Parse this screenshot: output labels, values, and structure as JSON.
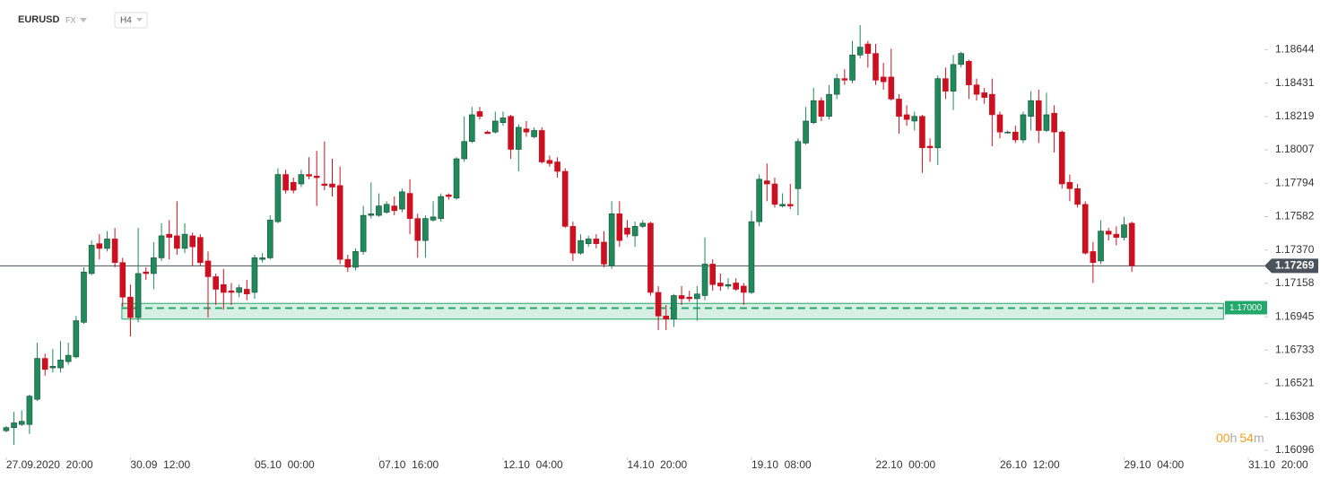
{
  "header": {
    "symbol": "EURUSD",
    "market": "FX",
    "timeframe": "H4"
  },
  "chart_data": {
    "type": "candlestick",
    "up_color": "#1f8a5c",
    "down_color": "#cc1020",
    "open": [
      1.1622,
      1.1624,
      1.1626,
      1.1626,
      1.1642,
      1.1668,
      1.1662,
      1.1662,
      1.1666,
      1.1669,
      1.1691,
      1.1722,
      1.1741,
      1.1738,
      1.1744,
      1.1729,
      1.1707,
      1.1694,
      1.1723,
      1.1722,
      1.1732,
      1.1747,
      1.1746,
      1.1738,
      1.1746,
      1.1745,
      1.173,
      1.172,
      1.1715,
      1.1711,
      1.171,
      1.1712,
      1.171,
      1.1731,
      1.1732,
      1.1755,
      1.1785,
      1.178,
      1.1779,
      1.1785,
      1.1784,
      1.1779,
      1.1779,
      1.1778,
      1.1731,
      1.1726,
      1.1736,
      1.1759,
      1.1759,
      1.1761,
      1.1765,
      1.1763,
      1.1773,
      1.1757,
      1.1743,
      1.1756,
      1.1757,
      1.1772,
      1.177,
      1.1795,
      1.1806,
      1.1825,
      1.1812,
      1.1812,
      1.1818,
      1.1822,
      1.1801,
      1.1814,
      1.1809,
      1.1813,
      1.1794,
      1.1793,
      1.1787,
      1.1752,
      1.1735,
      1.1741,
      1.1744,
      1.1742,
      1.1727,
      1.176,
      1.1751,
      1.1746,
      1.1752,
      1.1754,
      1.171,
      1.1695,
      1.1693,
      1.1708,
      1.1707,
      1.1706,
      1.1708,
      1.1728,
      1.1716,
      1.1714,
      1.1716,
      1.1714,
      1.171,
      1.1755,
      1.1781,
      1.1779,
      1.1765,
      1.1766,
      1.1776,
      1.1805,
      1.1818,
      1.1832,
      1.1822,
      1.1836,
      1.1846,
      1.1845,
      1.1861,
      1.1868,
      1.1862,
      1.1847,
      1.1847,
      1.1833,
      1.1823,
      1.1819,
      1.1822,
      1.1803,
      1.1802,
      1.1846,
      1.1838,
      1.1855,
      1.1857,
      1.1842,
      1.1837,
      1.1836,
      1.1823,
      1.1812,
      1.1812,
      1.1807,
      1.1822,
      1.1832,
      1.1813,
      1.1824,
      1.1812,
      1.178,
      1.1776,
      1.1766,
      1.1736,
      1.173,
      1.1749,
      1.1747,
      1.1745,
      1.1754
    ],
    "high": [
      1.1625,
      1.1634,
      1.1635,
      1.1645,
      1.1678,
      1.1671,
      1.1674,
      1.1679,
      1.1678,
      1.1695,
      1.1726,
      1.1743,
      1.1747,
      1.1749,
      1.1751,
      1.1732,
      1.1715,
      1.1751,
      1.1726,
      1.1742,
      1.1754,
      1.1756,
      1.1768,
      1.1754,
      1.1748,
      1.1747,
      1.1736,
      1.1722,
      1.1725,
      1.1716,
      1.1715,
      1.1718,
      1.1734,
      1.1735,
      1.1759,
      1.1789,
      1.1788,
      1.1783,
      1.1788,
      1.1796,
      1.18,
      1.1806,
      1.1795,
      1.179,
      1.1734,
      1.1738,
      1.1765,
      1.178,
      1.1773,
      1.1768,
      1.1771,
      1.1776,
      1.1782,
      1.176,
      1.1759,
      1.1768,
      1.1773,
      1.1773,
      1.1796,
      1.1822,
      1.1828,
      1.1828,
      1.1813,
      1.1825,
      1.1825,
      1.1823,
      1.1817,
      1.1819,
      1.1815,
      1.1815,
      1.1797,
      1.1796,
      1.1789,
      1.1755,
      1.1747,
      1.1746,
      1.1747,
      1.1749,
      1.1768,
      1.1768,
      1.1756,
      1.1755,
      1.1756,
      1.1755,
      1.1714,
      1.1702,
      1.1709,
      1.1714,
      1.1711,
      1.1714,
      1.1745,
      1.1731,
      1.1722,
      1.1719,
      1.1719,
      1.1716,
      1.1762,
      1.1785,
      1.1792,
      1.1783,
      1.1773,
      1.1779,
      1.1808,
      1.1828,
      1.184,
      1.1834,
      1.1842,
      1.1849,
      1.1852,
      1.187,
      1.188,
      1.187,
      1.1868,
      1.1856,
      1.1865,
      1.1836,
      1.1829,
      1.1825,
      1.1823,
      1.1808,
      1.1848,
      1.1853,
      1.1861,
      1.1863,
      1.1858,
      1.1846,
      1.184,
      1.1846,
      1.1825,
      1.1813,
      1.1816,
      1.1825,
      1.1838,
      1.1839,
      1.1837,
      1.1829,
      1.1813,
      1.1785,
      1.1779,
      1.1768,
      1.1742,
      1.1756,
      1.1751,
      1.1752,
      1.1758,
      1.1755
    ],
    "low": [
      1.1621,
      1.1613,
      1.1625,
      1.162,
      1.1641,
      1.1657,
      1.1659,
      1.1659,
      1.1664,
      1.1668,
      1.169,
      1.1721,
      1.1731,
      1.1736,
      1.1726,
      1.1701,
      1.1682,
      1.1691,
      1.1718,
      1.1712,
      1.173,
      1.1731,
      1.1734,
      1.1735,
      1.1727,
      1.1727,
      1.1694,
      1.1702,
      1.1699,
      1.1702,
      1.1707,
      1.1705,
      1.1706,
      1.1729,
      1.1731,
      1.1754,
      1.1773,
      1.1773,
      1.1777,
      1.1782,
      1.1765,
      1.1775,
      1.1771,
      1.1728,
      1.1723,
      1.1724,
      1.1734,
      1.1757,
      1.1758,
      1.176,
      1.1759,
      1.1761,
      1.1747,
      1.1732,
      1.1732,
      1.1755,
      1.1755,
      1.1769,
      1.1769,
      1.1793,
      1.1805,
      1.182,
      1.1811,
      1.1811,
      1.1816,
      1.1795,
      1.1787,
      1.1809,
      1.1808,
      1.1792,
      1.179,
      1.1783,
      1.1751,
      1.173,
      1.1734,
      1.1739,
      1.1738,
      1.1726,
      1.1725,
      1.1739,
      1.1745,
      1.1739,
      1.1751,
      1.1708,
      1.1686,
      1.1686,
      1.1688,
      1.1702,
      1.1704,
      1.1692,
      1.1705,
      1.1711,
      1.1711,
      1.1712,
      1.1711,
      1.1702,
      1.1709,
      1.1752,
      1.1768,
      1.1764,
      1.1764,
      1.1763,
      1.1759,
      1.1804,
      1.1817,
      1.1819,
      1.182,
      1.1833,
      1.1842,
      1.1843,
      1.1859,
      1.1853,
      1.1842,
      1.1839,
      1.1832,
      1.1811,
      1.1816,
      1.1813,
      1.1786,
      1.1793,
      1.1791,
      1.1833,
      1.1826,
      1.1853,
      1.1833,
      1.1832,
      1.183,
      1.1803,
      1.1808,
      1.1811,
      1.1805,
      1.1805,
      1.1813,
      1.1805,
      1.1812,
      1.1799,
      1.1776,
      1.1768,
      1.1764,
      1.1734,
      1.1716,
      1.1728,
      1.1743,
      1.174,
      1.1743,
      1.1723
    ],
    "close": [
      1.1624,
      1.1627,
      1.1628,
      1.1644,
      1.1668,
      1.1661,
      1.1663,
      1.1667,
      1.167,
      1.1692,
      1.1723,
      1.174,
      1.1738,
      1.1744,
      1.1729,
      1.1707,
      1.1694,
      1.1722,
      1.1722,
      1.1732,
      1.1746,
      1.1745,
      1.1738,
      1.1747,
      1.1739,
      1.1729,
      1.172,
      1.1712,
      1.171,
      1.171,
      1.1713,
      1.1709,
      1.1732,
      1.1732,
      1.1756,
      1.1785,
      1.1775,
      1.1775,
      1.1785,
      1.1784,
      1.1783,
      1.1778,
      1.1777,
      1.1731,
      1.1726,
      1.1736,
      1.1759,
      1.176,
      1.1765,
      1.1766,
      1.1762,
      1.1774,
      1.1757,
      1.1743,
      1.1757,
      1.1758,
      1.1771,
      1.1771,
      1.1795,
      1.1806,
      1.1823,
      1.1822,
      1.1811,
      1.1819,
      1.1821,
      1.1801,
      1.1815,
      1.1812,
      1.1813,
      1.1793,
      1.1792,
      1.1787,
      1.1752,
      1.1735,
      1.1743,
      1.1744,
      1.1741,
      1.1728,
      1.176,
      1.1743,
      1.1747,
      1.1752,
      1.1754,
      1.171,
      1.1695,
      1.1693,
      1.1708,
      1.1706,
      1.1706,
      1.1709,
      1.1728,
      1.1715,
      1.1714,
      1.1715,
      1.1712,
      1.171,
      1.1755,
      1.1782,
      1.1779,
      1.1766,
      1.1766,
      1.1765,
      1.1806,
      1.1819,
      1.1832,
      1.1822,
      1.1836,
      1.1846,
      1.1845,
      1.1861,
      1.1866,
      1.1862,
      1.1845,
      1.1844,
      1.1833,
      1.1822,
      1.182,
      1.1822,
      1.1802,
      1.1802,
      1.1846,
      1.1838,
      1.1855,
      1.1862,
      1.1842,
      1.1836,
      1.1834,
      1.1823,
      1.1812,
      1.1812,
      1.1807,
      1.1823,
      1.1832,
      1.1813,
      1.1823,
      1.1812,
      1.1779,
      1.1776,
      1.1766,
      1.1735,
      1.1729,
      1.1749,
      1.1747,
      1.1745,
      1.1753,
      1.17269
    ],
    "xlim": [
      -0.8,
      161.5
    ],
    "xticks": [
      {
        "value": 0,
        "label": "27.09.2020  20:00"
      },
      {
        "value": 16,
        "label": "30.09  12:00"
      },
      {
        "value": 32,
        "label": "05.10  00:00"
      },
      {
        "value": 48,
        "label": "07.10  16:00"
      },
      {
        "value": 64,
        "label": "12.10  04:00"
      },
      {
        "value": 80,
        "label": "14.10  20:00"
      },
      {
        "value": 96,
        "label": "19.10  08:00"
      },
      {
        "value": 112,
        "label": "22.10  00:00"
      },
      {
        "value": 128,
        "label": "26.10  12:00"
      },
      {
        "value": 144,
        "label": "29.10  04:00"
      },
      {
        "value": 160,
        "label": "31.10  20:00"
      }
    ],
    "ylim": [
      1.1605,
      1.1896
    ],
    "yticks": [
      1.18644,
      1.18431,
      1.18219,
      1.18007,
      1.17794,
      1.17582,
      {
        "value": 1.1737,
        "label": "1.17370"
      },
      1.17158,
      1.16945,
      1.16733,
      1.16521,
      1.16308,
      1.16096
    ],
    "current_price": 1.17269,
    "level": {
      "value": 1.17,
      "label": "1.17000"
    },
    "zone": {
      "low": 1.1693,
      "high": 1.1703,
      "start": 14.9,
      "end": 156.8
    },
    "countdown": [
      "00",
      "h",
      "54",
      "m"
    ]
  }
}
